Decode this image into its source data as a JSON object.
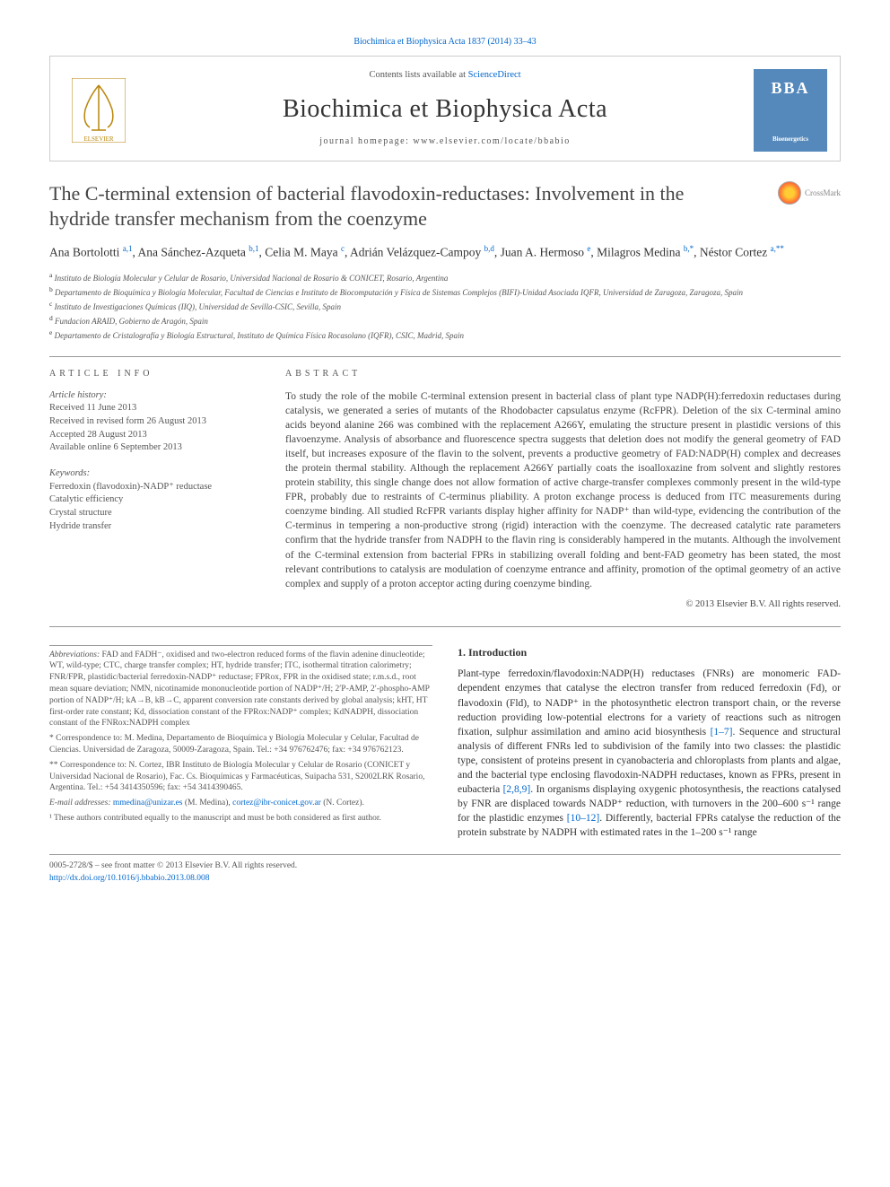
{
  "header": {
    "top_link": "Biochimica et Biophysica Acta 1837 (2014) 33–43",
    "contents_prefix": "Contents lists available at ",
    "contents_link": "ScienceDirect",
    "journal_name": "Biochimica et Biophysica Acta",
    "homepage_label": "journal homepage: www.elsevier.com/locate/bbabio",
    "elsevier_alt": "ELSEVIER",
    "bba_alt": "BBA Bioenergetics"
  },
  "crossmark": "CrossMark",
  "title": "The C-terminal extension of bacterial flavodoxin-reductases: Involvement in the hydride transfer mechanism from the coenzyme",
  "authors_html": "Ana Bortolotti <sup>a,1</sup>, Ana Sánchez-Azqueta <sup>b,1</sup>, Celia M. Maya <sup>c</sup>, Adrián Velázquez-Campoy <sup>b,d</sup>, Juan A. Hermoso <sup>e</sup>, Milagros Medina <sup>b,*</sup>, Néstor Cortez <sup>a,**</sup>",
  "affiliations": [
    {
      "sup": "a",
      "text": "Instituto de Biología Molecular y Celular de Rosario, Universidad Nacional de Rosario & CONICET, Rosario, Argentina"
    },
    {
      "sup": "b",
      "text": "Departamento de Bioquímica y Biología Molecular, Facultad de Ciencias e Instituto de Biocomputación y Física de Sistemas Complejos (BIFI)-Unidad Asociada IQFR, Universidad de Zaragoza, Zaragoza, Spain"
    },
    {
      "sup": "c",
      "text": "Instituto de Investigaciones Químicas (IIQ), Universidad de Sevilla-CSIC, Sevilla, Spain"
    },
    {
      "sup": "d",
      "text": "Fundacion ARAID, Gobierno de Aragón, Spain"
    },
    {
      "sup": "e",
      "text": "Departamento de Cristalografía y Biología Estructural, Instituto de Química Física Rocasolano (IQFR), CSIC, Madrid, Spain"
    }
  ],
  "article_info_label": "ARTICLE INFO",
  "abstract_label": "ABSTRACT",
  "history": {
    "label": "Article history:",
    "lines": [
      "Received 11 June 2013",
      "Received in revised form 26 August 2013",
      "Accepted 28 August 2013",
      "Available online 6 September 2013"
    ]
  },
  "keywords": {
    "label": "Keywords:",
    "items": [
      "Ferredoxin (flavodoxin)-NADP⁺ reductase",
      "Catalytic efficiency",
      "Crystal structure",
      "Hydride transfer"
    ]
  },
  "abstract": "To study the role of the mobile C-terminal extension present in bacterial class of plant type NADP(H):ferredoxin reductases during catalysis, we generated a series of mutants of the Rhodobacter capsulatus enzyme (RcFPR). Deletion of the six C-terminal amino acids beyond alanine 266 was combined with the replacement A266Y, emulating the structure present in plastidic versions of this flavoenzyme. Analysis of absorbance and fluorescence spectra suggests that deletion does not modify the general geometry of FAD itself, but increases exposure of the flavin to the solvent, prevents a productive geometry of FAD:NADP(H) complex and decreases the protein thermal stability. Although the replacement A266Y partially coats the isoalloxazine from solvent and slightly restores protein stability, this single change does not allow formation of active charge-transfer complexes commonly present in the wild-type FPR, probably due to restraints of C-terminus pliability. A proton exchange process is deduced from ITC measurements during coenzyme binding. All studied RcFPR variants display higher affinity for NADP⁺ than wild-type, evidencing the contribution of the C-terminus in tempering a non-productive strong (rigid) interaction with the coenzyme. The decreased catalytic rate parameters confirm that the hydride transfer from NADPH to the flavin ring is considerably hampered in the mutants. Although the involvement of the C-terminal extension from bacterial FPRs in stabilizing overall folding and bent-FAD geometry has been stated, the most relevant contributions to catalysis are modulation of coenzyme entrance and affinity, promotion of the optimal geometry of an active complex and supply of a proton acceptor acting during coenzyme binding.",
  "copyright": "© 2013 Elsevier B.V. All rights reserved.",
  "intro": {
    "heading": "1. Introduction",
    "text": "Plant-type ferredoxin/flavodoxin:NADP(H) reductases (FNRs) are monomeric FAD-dependent enzymes that catalyse the electron transfer from reduced ferredoxin (Fd), or flavodoxin (Fld), to NADP⁺ in the photosynthetic electron transport chain, or the reverse reduction providing low-potential electrons for a variety of reactions such as nitrogen fixation, sulphur assimilation and amino acid biosynthesis [1–7]. Sequence and structural analysis of different FNRs led to subdivision of the family into two classes: the plastidic type, consistent of proteins present in cyanobacteria and chloroplasts from plants and algae, and the bacterial type enclosing flavodoxin-NADPH reductases, known as FPRs, present in eubacteria [2,8,9]. In organisms displaying oxygenic photosynthesis, the reactions catalysed by FNR are displaced towards NADP⁺ reduction, with turnovers in the 200–600 s⁻¹ range for the plastidic enzymes [10–12]. Differently, bacterial FPRs catalyse the reduction of the protein substrate by NADPH with estimated rates in the 1–200 s⁻¹ range",
    "cites": [
      "[1–7]",
      "[2,8,9]",
      "[10–12]"
    ]
  },
  "footnotes": {
    "abbrev_label": "Abbreviations:",
    "abbrev": "FAD and FADH⁻, oxidised and two-electron reduced forms of the flavin adenine dinucleotide; WT, wild-type; CTC, charge transfer complex; HT, hydride transfer; ITC, isothermal titration calorimetry; FNR/FPR, plastidic/bacterial ferredoxin-NADP⁺ reductase; FPRox, FPR in the oxidised state; r.m.s.d., root mean square deviation; NMN, nicotinamide mononucleotide portion of NADP⁺/H; 2′P-AMP, 2′-phospho-AMP portion of NADP⁺/H; kA→B, kB→C, apparent conversion rate constants derived by global analysis; kHT, HT first-order rate constant; Kd, dissociation constant of the FPRox:NADP⁺ complex; KdNADPH, dissociation constant of the FNRox:NADPH complex",
    "corr1": "* Correspondence to: M. Medina, Departamento de Bioquímica y Biología Molecular y Celular, Facultad de Ciencias. Universidad de Zaragoza, 50009-Zaragoza, Spain. Tel.: +34 976762476; fax: +34 976762123.",
    "corr2": "** Correspondence to: N. Cortez, IBR Instituto de Biología Molecular y Celular de Rosario (CONICET y Universidad Nacional de Rosario), Fac. Cs. Bioquímicas y Farmacéuticas, Suipacha 531, S2002LRK Rosario, Argentina. Tel.: +54 3414350596; fax: +54 3414390465.",
    "emails_label": "E-mail addresses:",
    "email1": "mmedina@unizar.es",
    "email1_name": "(M. Medina),",
    "email2": "cortez@ibr-conicet.gov.ar",
    "email2_name": "(N. Cortez).",
    "equal": "¹ These authors contributed equally to the manuscript and must be both considered as first author."
  },
  "footer": {
    "left": "0005-2728/$ – see front matter © 2013 Elsevier B.V. All rights reserved.",
    "doi": "http://dx.doi.org/10.1016/j.bbabio.2013.08.008"
  },
  "colors": {
    "link": "#0066cc",
    "text": "#333333",
    "muted": "#555555",
    "rule": "#999999",
    "bba_bg": "#5588bb"
  }
}
